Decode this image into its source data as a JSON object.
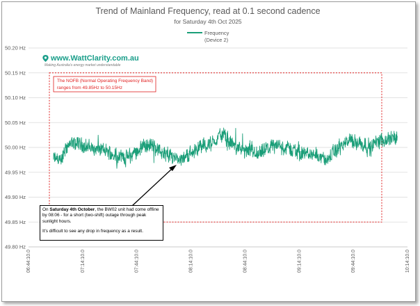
{
  "chart_data": {
    "type": "line",
    "title": "Trend of Mainland Frequency, read at 0.1 second cadence",
    "subtitle": "for Saturday 4th Oct 2025",
    "legend": {
      "label_line1": "Frequency",
      "label_line2": "(Device 2)",
      "position": "top"
    },
    "y_ticks": [
      "50.20 Hz",
      "50.15 Hz",
      "50.10 Hz",
      "50.05 Hz",
      "50.00 Hz",
      "49.95 Hz",
      "49.90 Hz",
      "49.85 Hz",
      "49.80 Hz"
    ],
    "ylim": [
      49.8,
      50.2
    ],
    "x_ticks": [
      "06:44:10.0",
      "07:14:10.0",
      "07:44:10.0",
      "08:14:10.0",
      "08:44:10.0",
      "09:14:10.0",
      "09:44:10.0",
      "10:14:10.0"
    ],
    "xlim": [
      "06:44:10",
      "10:14:10"
    ],
    "grid": true,
    "series": [
      {
        "name": "Frequency (Device 2)",
        "color": "#1a9e78",
        "x_start": "06:58:00",
        "x_end": "10:08:30",
        "approx_range": [
          49.955,
          50.045
        ],
        "typical_mean": 50.0
      }
    ],
    "band": {
      "lower": 49.85,
      "upper": 50.15,
      "color": "#e01e1e",
      "note_line1": "The NOFB  (Normal Operating Frequency Band)",
      "note_line2": "ranges from 49.85Hz to 50.15Hz"
    },
    "annotation": {
      "p1_bold1": "Saturday 4th October",
      "p1_pre": "On ",
      "p1_rest_line1": ", the BW02 unit had come offline",
      "p1_line2": "by 08:06 - for a short (two-shift) outage through peak",
      "p1_line3": "sunlight hours.",
      "p2": "It's difficult to see any drop in frequency as a result.",
      "arrow_target_time": "08:16:00",
      "arrow_target_value": 49.97
    }
  },
  "logo": {
    "text": "www.WattClarity.com.au",
    "tagline": "Making Australia's energy market understandable"
  }
}
